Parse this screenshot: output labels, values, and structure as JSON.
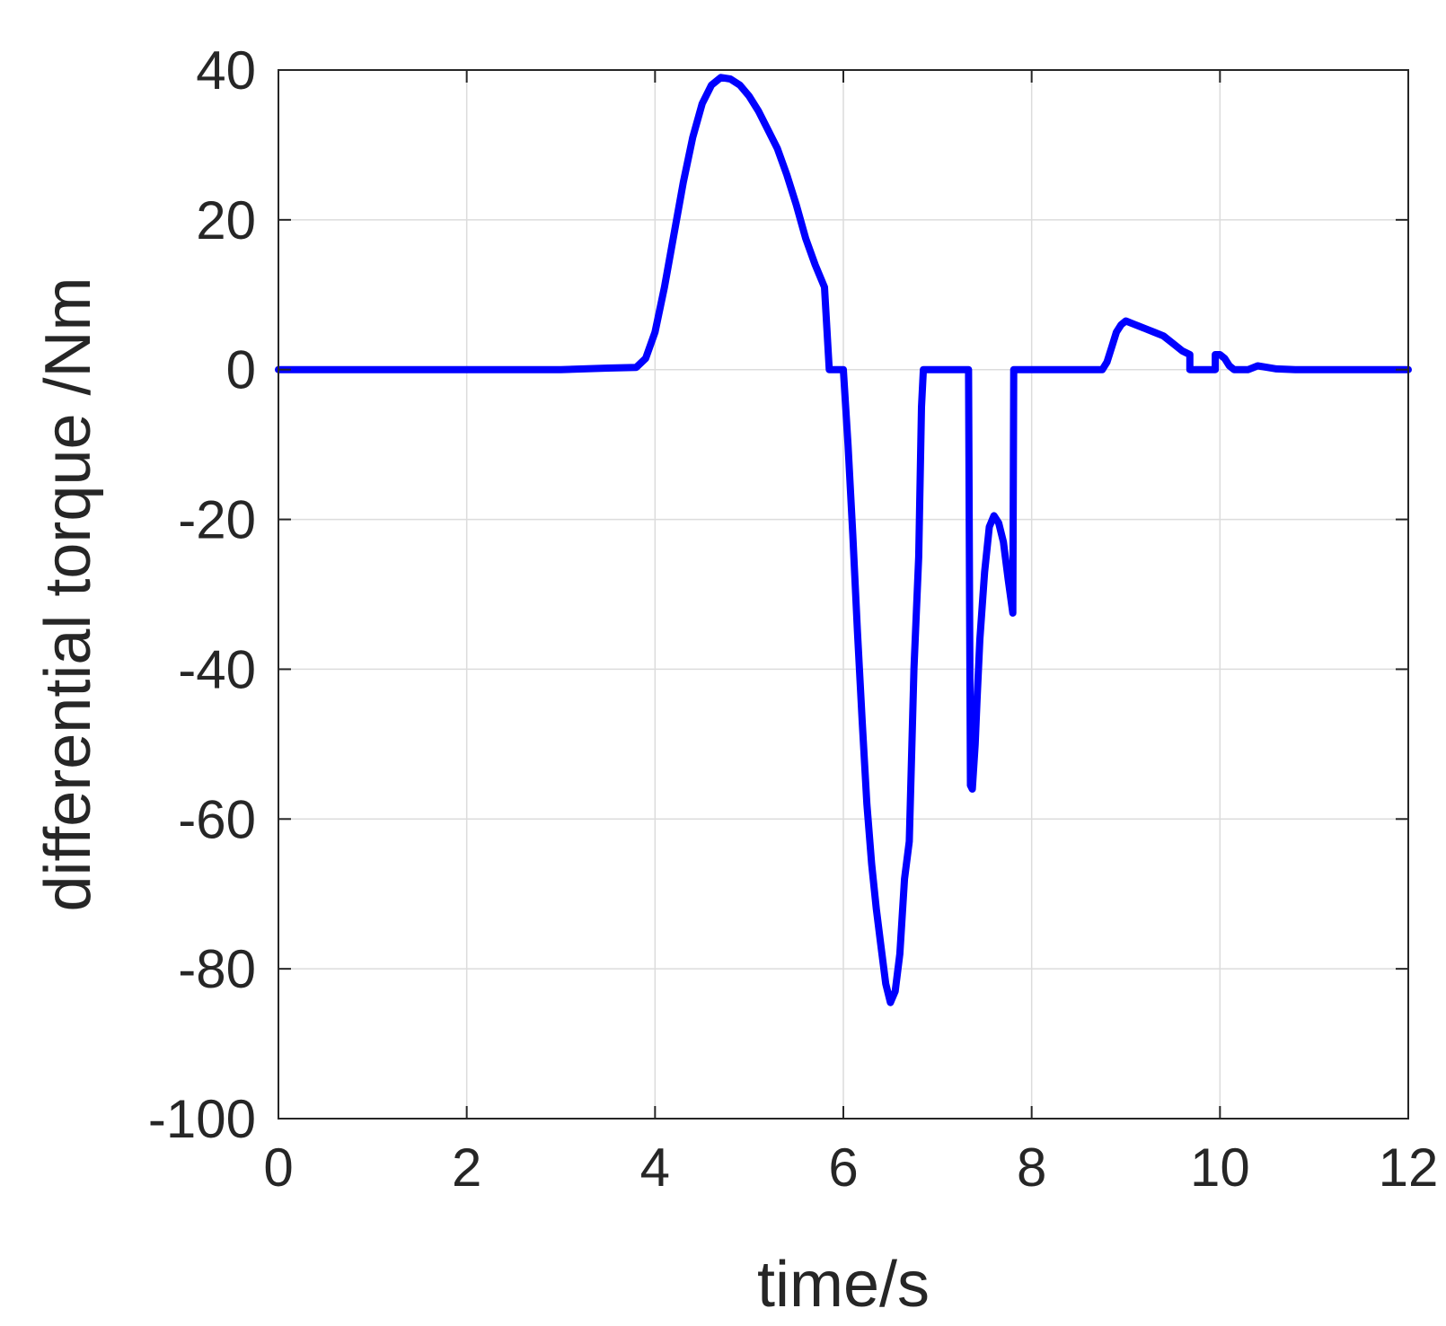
{
  "chart_data": {
    "type": "line",
    "title": "",
    "xlabel": "time/s",
    "ylabel": "differential torque /Nm",
    "xlim": [
      0,
      12
    ],
    "ylim": [
      -100,
      40
    ],
    "xticks": [
      0,
      2,
      4,
      6,
      8,
      10,
      12
    ],
    "yticks": [
      -100,
      -80,
      -60,
      -40,
      -20,
      0,
      20,
      40
    ],
    "xtick_labels": [
      "0",
      "2",
      "4",
      "6",
      "8",
      "10",
      "12"
    ],
    "ytick_labels": [
      "-100",
      "-80",
      "-60",
      "-40",
      "-20",
      "0",
      "20",
      "40"
    ],
    "grid": true,
    "legend": "none",
    "colors": {
      "line": "#0000ff",
      "axis": "#262626",
      "grid": "#dcdcdc",
      "background": "#ffffff"
    },
    "series": [
      {
        "x": [
          0,
          1,
          2,
          3,
          3.5,
          3.8,
          3.9,
          4.0,
          4.1,
          4.2,
          4.3,
          4.4,
          4.5,
          4.6,
          4.7,
          4.8,
          4.9,
          5.0,
          5.1,
          5.2,
          5.3,
          5.4,
          5.5,
          5.6,
          5.7,
          5.8,
          5.85,
          5.85,
          6.0,
          6.05,
          6.1,
          6.15,
          6.2,
          6.25,
          6.3,
          6.35,
          6.4,
          6.45,
          6.5,
          6.55,
          6.6,
          6.65,
          6.7,
          6.75,
          6.8,
          6.83,
          6.85,
          6.87,
          7.0,
          7.2,
          7.33,
          7.34,
          7.35,
          7.37,
          7.4,
          7.42,
          7.45,
          7.5,
          7.55,
          7.6,
          7.65,
          7.7,
          7.75,
          7.8,
          7.81,
          7.81,
          8.0,
          8.5,
          8.75,
          8.8,
          8.85,
          8.9,
          8.95,
          9.0,
          9.1,
          9.2,
          9.3,
          9.4,
          9.5,
          9.6,
          9.68,
          9.68,
          9.7,
          9.95,
          9.95,
          10.0,
          10.05,
          10.1,
          10.15,
          10.2,
          10.3,
          10.4,
          10.5,
          10.6,
          10.8,
          11.0,
          11.2,
          11.4,
          11.6,
          11.8,
          12.0
        ],
        "y": [
          0,
          0,
          0,
          0,
          0.2,
          0.3,
          1.5,
          5,
          11,
          18,
          25,
          31,
          35.5,
          38,
          39,
          38.8,
          38,
          36.5,
          34.5,
          32,
          29.5,
          26,
          22,
          17.5,
          14,
          11,
          0,
          0,
          0,
          -10,
          -22,
          -35,
          -47,
          -58,
          -66,
          -72,
          -77,
          -82,
          -84.5,
          -83,
          -78,
          -68,
          -63,
          -40,
          -25,
          -5,
          0,
          0,
          0,
          0,
          0,
          -30,
          -55.5,
          -56,
          -50,
          -44,
          -36,
          -27,
          -21,
          -19.5,
          -20.5,
          -23,
          -28,
          -32.5,
          0,
          0,
          0,
          0,
          0,
          1,
          3,
          5,
          6,
          6.5,
          6,
          5.5,
          5,
          4.5,
          3.5,
          2.5,
          2,
          0,
          0,
          0,
          2,
          2,
          1.5,
          0.5,
          0,
          0,
          0,
          0.5,
          0.3,
          0.1,
          0,
          0,
          0,
          0,
          0,
          0,
          0
        ]
      }
    ]
  }
}
